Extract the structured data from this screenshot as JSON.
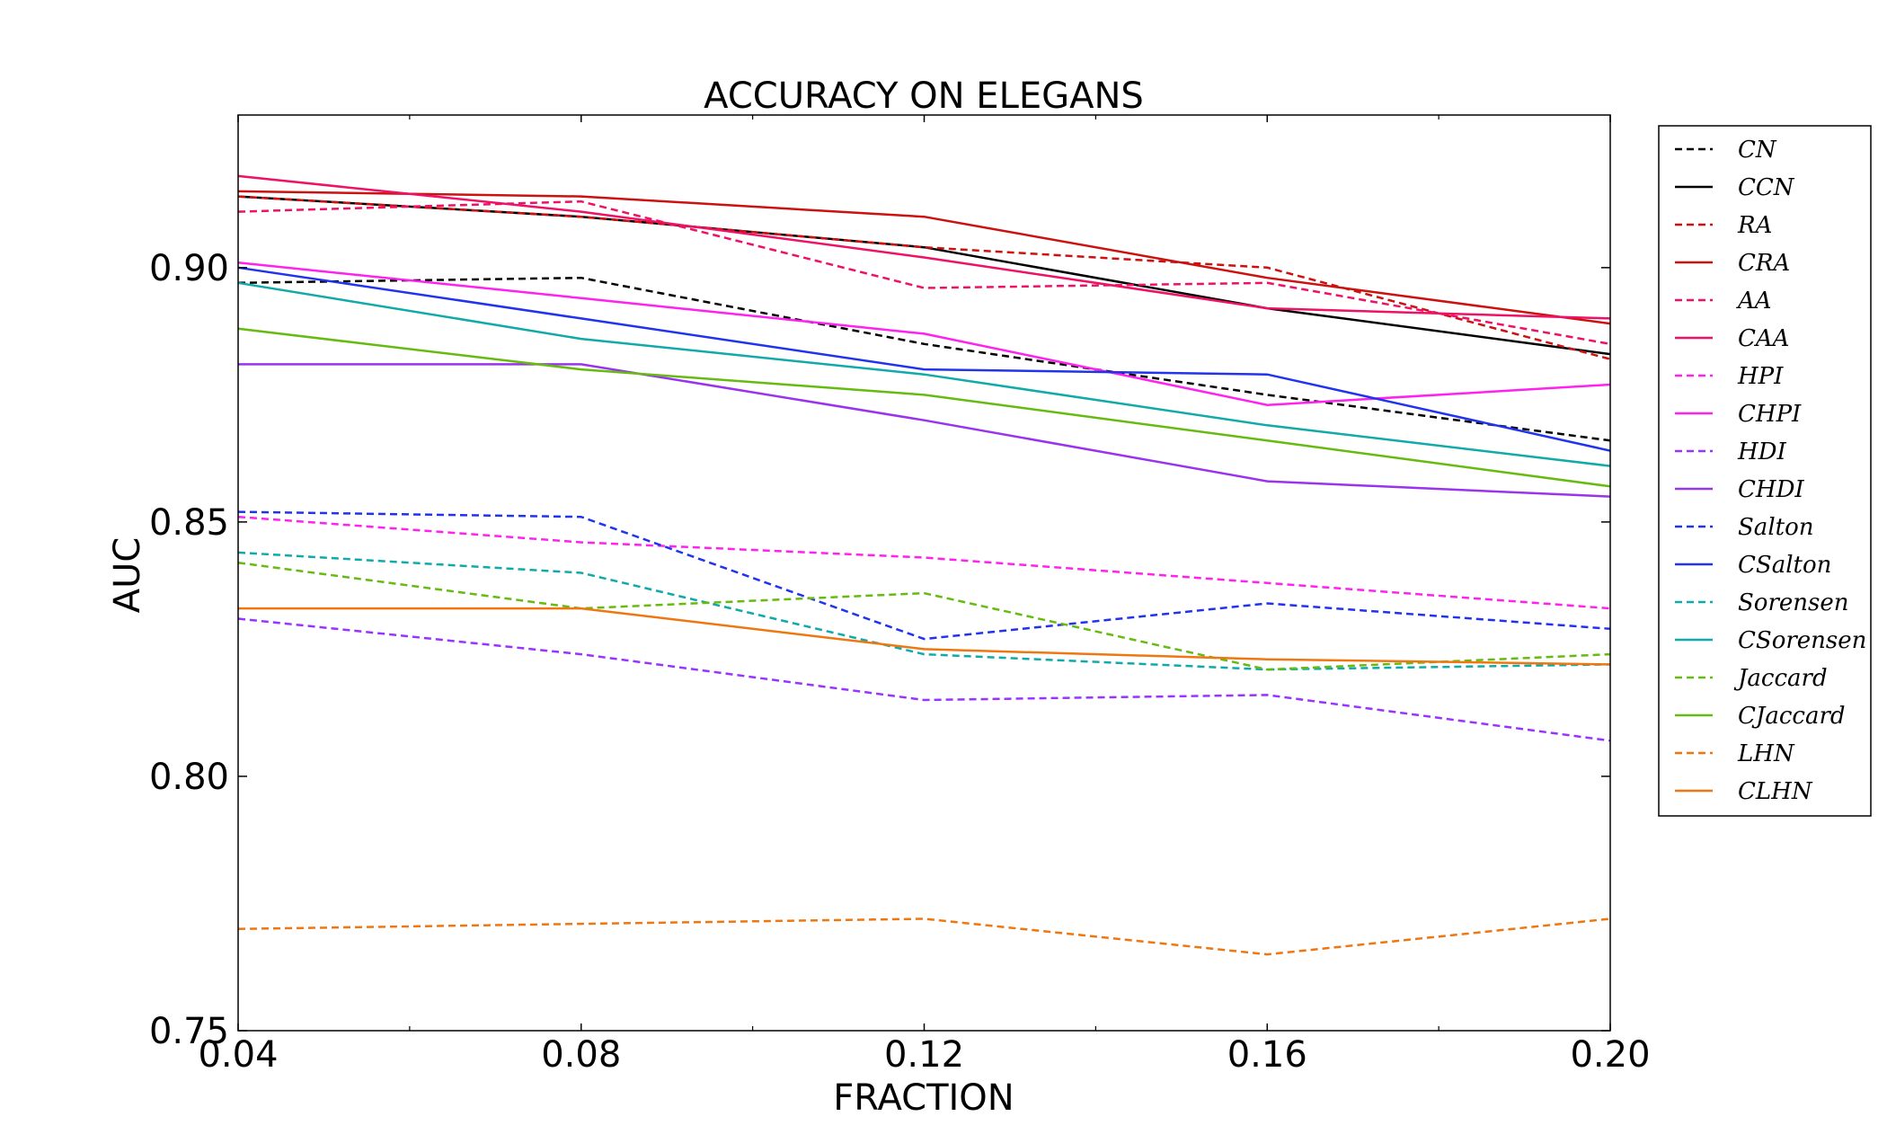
{
  "chart_data": {
    "type": "line",
    "title": "ACCURACY ON ELEGANS",
    "xlabel": "FRACTION",
    "ylabel": "AUC",
    "x": [
      0.04,
      0.08,
      0.12,
      0.16,
      0.2
    ],
    "xlim": [
      0.04,
      0.2
    ],
    "ylim": [
      0.75,
      0.93
    ],
    "x_ticks": [
      "0.04",
      "0.08",
      "0.12",
      "0.16",
      "0.20"
    ],
    "x_tick_values": [
      0.04,
      0.08,
      0.12,
      0.16,
      0.2
    ],
    "y_ticks": [
      "0.75",
      "0.80",
      "0.85",
      "0.90"
    ],
    "y_tick_values": [
      0.75,
      0.8,
      0.85,
      0.9
    ],
    "grid": false,
    "legend_position": "outside-right",
    "series": [
      {
        "name": "CN",
        "color": "#000000",
        "dash": true,
        "values": [
          0.897,
          0.898,
          0.885,
          0.875,
          0.866
        ]
      },
      {
        "name": "CCN",
        "color": "#000000",
        "dash": false,
        "values": [
          0.914,
          0.91,
          0.904,
          0.892,
          0.883
        ]
      },
      {
        "name": "RA",
        "color": "#cc1111",
        "dash": true,
        "values": [
          0.914,
          0.91,
          0.904,
          0.9,
          0.882
        ]
      },
      {
        "name": "CRA",
        "color": "#cc1111",
        "dash": false,
        "values": [
          0.915,
          0.914,
          0.91,
          0.898,
          0.889
        ]
      },
      {
        "name": "AA",
        "color": "#ee1166",
        "dash": true,
        "values": [
          0.911,
          0.913,
          0.896,
          0.897,
          0.885
        ]
      },
      {
        "name": "CAA",
        "color": "#ee1166",
        "dash": false,
        "values": [
          0.918,
          0.911,
          0.902,
          0.892,
          0.89
        ]
      },
      {
        "name": "HPI",
        "color": "#ff22ee",
        "dash": true,
        "values": [
          0.851,
          0.846,
          0.843,
          0.838,
          0.833
        ]
      },
      {
        "name": "CHPI",
        "color": "#ff22ee",
        "dash": false,
        "values": [
          0.901,
          0.894,
          0.887,
          0.873,
          0.877
        ]
      },
      {
        "name": "HDI",
        "color": "#9933ff",
        "dash": true,
        "values": [
          0.831,
          0.824,
          0.815,
          0.816,
          0.807
        ]
      },
      {
        "name": "CHDI",
        "color": "#9933ee",
        "dash": false,
        "values": [
          0.881,
          0.881,
          0.87,
          0.858,
          0.855
        ]
      },
      {
        "name": "Salton",
        "color": "#2233ee",
        "dash": true,
        "values": [
          0.852,
          0.851,
          0.827,
          0.834,
          0.829
        ]
      },
      {
        "name": "CSalton",
        "color": "#2233ee",
        "dash": false,
        "values": [
          0.9,
          0.89,
          0.88,
          0.879,
          0.864
        ]
      },
      {
        "name": "Sorensen",
        "color": "#11aaaa",
        "dash": true,
        "values": [
          0.844,
          0.84,
          0.824,
          0.821,
          0.822
        ]
      },
      {
        "name": "CSorensen",
        "color": "#11aaaa",
        "dash": false,
        "values": [
          0.897,
          0.886,
          0.879,
          0.869,
          0.861
        ]
      },
      {
        "name": "Jaccard",
        "color": "#66bb11",
        "dash": true,
        "values": [
          0.842,
          0.833,
          0.836,
          0.821,
          0.824
        ]
      },
      {
        "name": "CJaccard",
        "color": "#66bb11",
        "dash": false,
        "values": [
          0.888,
          0.88,
          0.875,
          0.866,
          0.857
        ]
      },
      {
        "name": "LHN",
        "color": "#ee7711",
        "dash": true,
        "values": [
          0.77,
          0.771,
          0.772,
          0.765,
          0.772
        ]
      },
      {
        "name": "CLHN",
        "color": "#ee7711",
        "dash": false,
        "values": [
          0.833,
          0.833,
          0.825,
          0.823,
          0.822
        ]
      }
    ]
  }
}
